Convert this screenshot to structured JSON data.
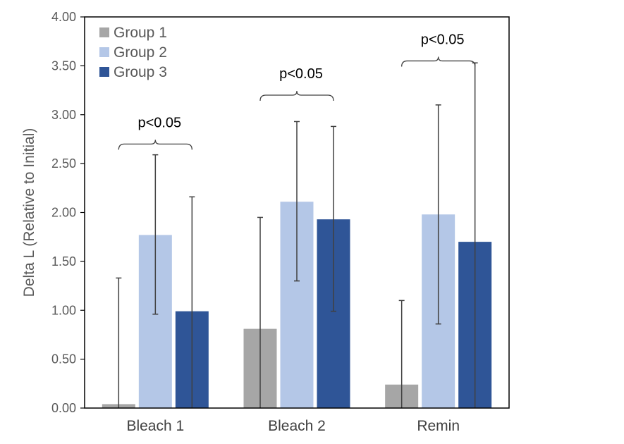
{
  "chart_data": {
    "type": "bar",
    "title": "",
    "xlabel": "",
    "ylabel": "Delta L (Relative to Initial)",
    "ylim": [
      0,
      4
    ],
    "y_ticks": [
      "0.00",
      "0.50",
      "1.00",
      "1.50",
      "2.00",
      "2.50",
      "3.00",
      "3.50",
      "4.00"
    ],
    "categories": [
      "Bleach 1",
      "Bleach 2",
      "Remin"
    ],
    "series": [
      {
        "name": "Group 1",
        "color": "#a6a6a6",
        "values": [
          0.04,
          0.81,
          0.24
        ],
        "error_low": [
          0.0,
          0.0,
          0.0
        ],
        "error_high": [
          1.33,
          1.95,
          1.1
        ]
      },
      {
        "name": "Group 2",
        "color": "#b4c7e7",
        "values": [
          1.77,
          2.11,
          1.98
        ],
        "error_low": [
          0.96,
          1.3,
          0.86
        ],
        "error_high": [
          2.59,
          2.93,
          3.1
        ]
      },
      {
        "name": "Group 3",
        "color": "#2f5597",
        "values": [
          0.99,
          1.93,
          1.7
        ],
        "error_low": [
          0.0,
          0.99,
          0.0
        ],
        "error_high": [
          2.16,
          2.88,
          3.53
        ]
      }
    ],
    "annotations": [
      {
        "category": "Bleach 1",
        "text": "p<0.05",
        "y": 2.7
      },
      {
        "category": "Bleach 2",
        "text": "p<0.05",
        "y": 3.2
      },
      {
        "category": "Remin",
        "text": "p<0.05",
        "y": 3.55
      }
    ],
    "legend_position": "top-left",
    "grid": false
  }
}
